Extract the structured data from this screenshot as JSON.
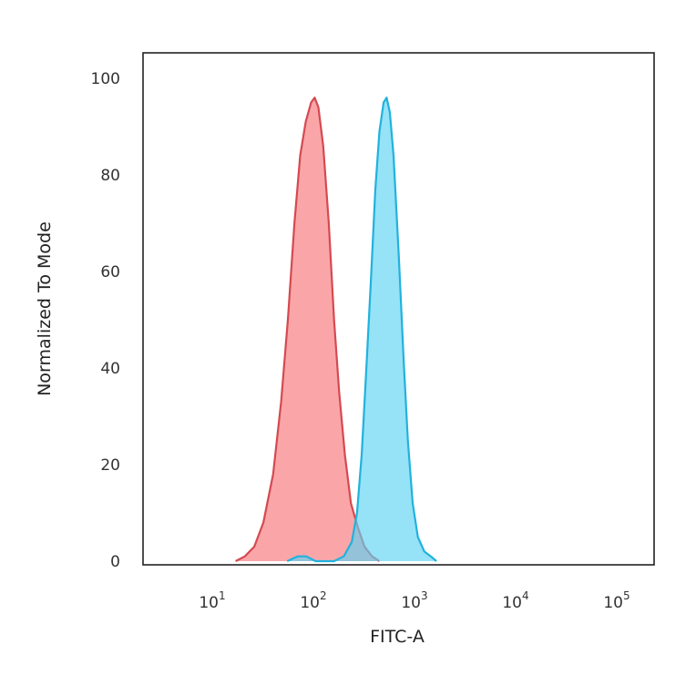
{
  "chart_data": {
    "type": "area",
    "xlabel": "FITC-A",
    "ylabel": "Normalized To Mode",
    "x_scale": "log",
    "xlim": [
      1,
      100000
    ],
    "ylim": [
      0,
      100
    ],
    "y_ticks": [
      "0",
      "20",
      "40",
      "60",
      "80",
      "100"
    ],
    "x_ticks": [
      {
        "base": "10",
        "exp": "1",
        "value": 10
      },
      {
        "base": "10",
        "exp": "2",
        "value": 100
      },
      {
        "base": "10",
        "exp": "3",
        "value": 1000
      },
      {
        "base": "10",
        "exp": "4",
        "value": 10000
      },
      {
        "base": "10",
        "exp": "5",
        "value": 100000
      }
    ],
    "grid": false,
    "legend": "none",
    "series": [
      {
        "fill": "#f8888c",
        "stroke": "#d44a50",
        "points": [
          [
            17,
            0
          ],
          [
            21,
            1
          ],
          [
            26,
            3
          ],
          [
            32,
            8
          ],
          [
            40,
            18
          ],
          [
            48,
            33
          ],
          [
            56,
            50
          ],
          [
            65,
            70
          ],
          [
            74,
            84
          ],
          [
            84,
            91
          ],
          [
            95,
            95
          ],
          [
            103,
            96
          ],
          [
            112,
            94
          ],
          [
            125,
            86
          ],
          [
            142,
            70
          ],
          [
            160,
            50
          ],
          [
            180,
            35
          ],
          [
            205,
            22
          ],
          [
            235,
            12
          ],
          [
            275,
            7
          ],
          [
            320,
            3
          ],
          [
            380,
            1
          ],
          [
            450,
            0
          ]
        ]
      },
      {
        "fill": "#5ed3f3",
        "stroke": "#21b2dd",
        "points": [
          [
            55,
            0
          ],
          [
            70,
            1
          ],
          [
            85,
            1
          ],
          [
            105,
            0
          ],
          [
            160,
            0
          ],
          [
            200,
            1
          ],
          [
            240,
            4
          ],
          [
            270,
            10
          ],
          [
            300,
            22
          ],
          [
            330,
            38
          ],
          [
            370,
            58
          ],
          [
            410,
            77
          ],
          [
            450,
            89
          ],
          [
            495,
            95
          ],
          [
            530,
            96
          ],
          [
            570,
            93
          ],
          [
            620,
            84
          ],
          [
            700,
            63
          ],
          [
            780,
            42
          ],
          [
            860,
            25
          ],
          [
            960,
            12
          ],
          [
            1080,
            5
          ],
          [
            1250,
            2
          ],
          [
            1450,
            1
          ],
          [
            1650,
            0
          ]
        ]
      }
    ]
  }
}
